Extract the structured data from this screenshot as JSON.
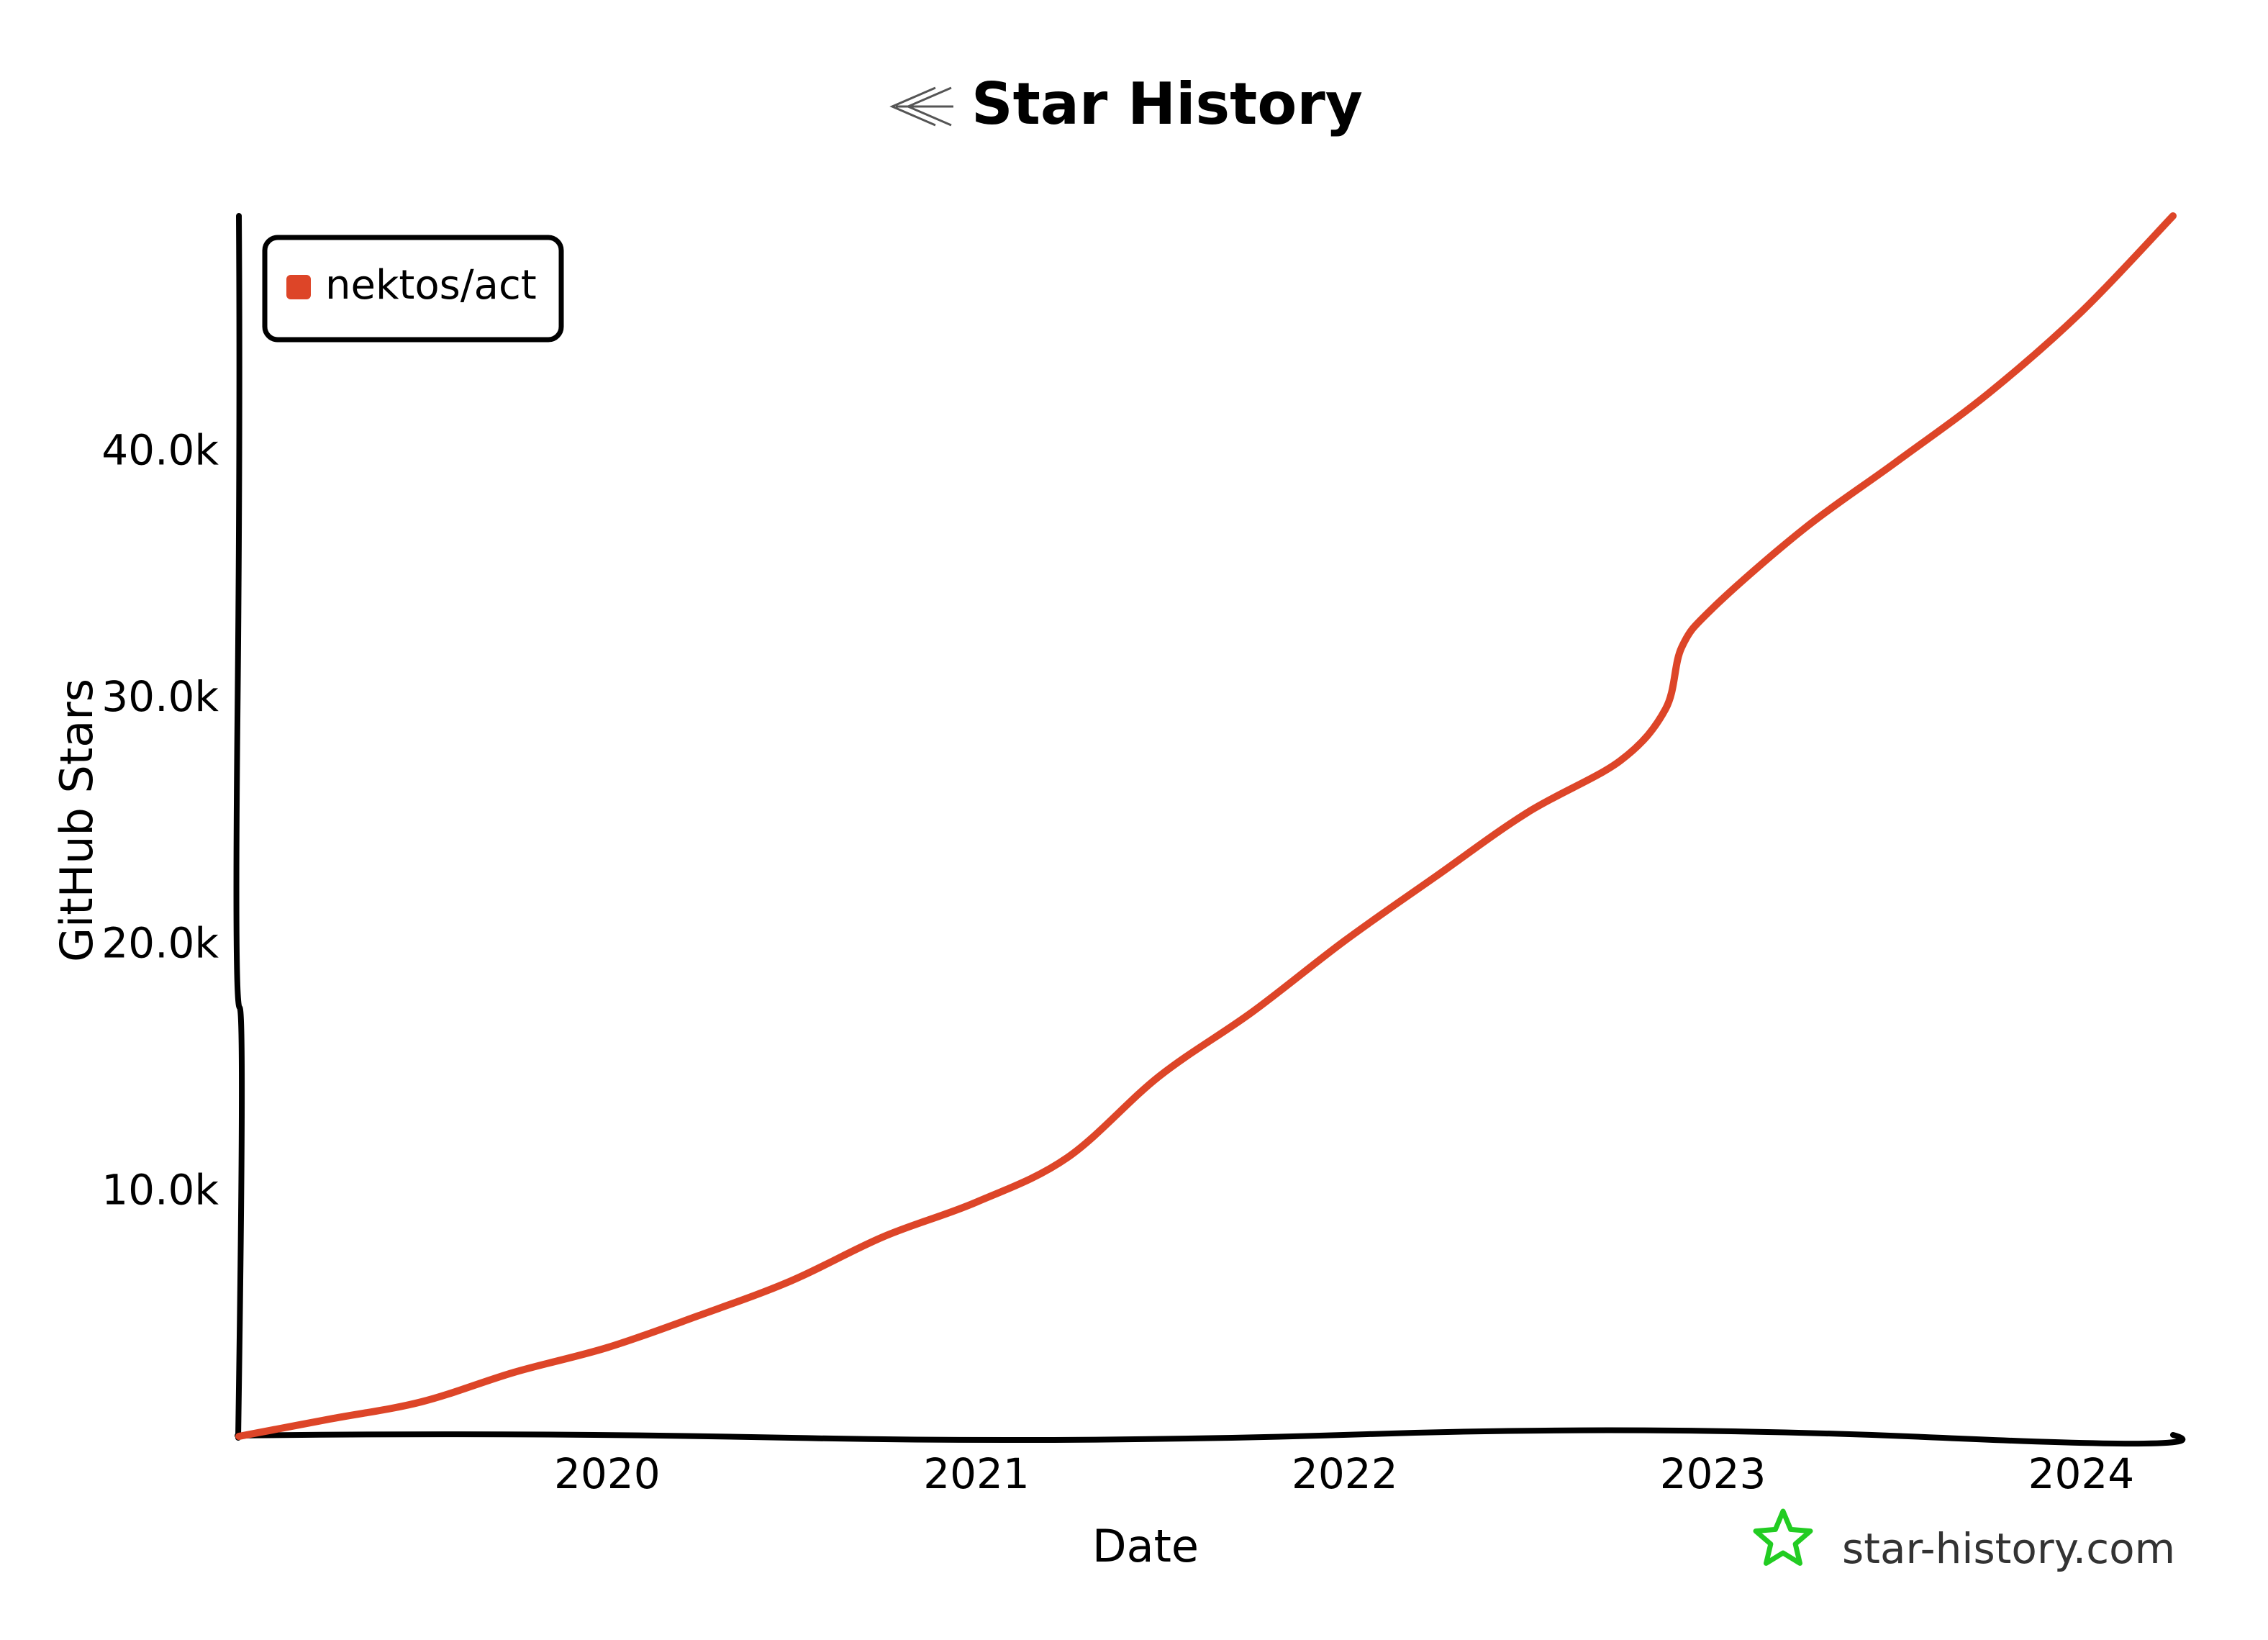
{
  "chart_data": {
    "type": "line",
    "title": "Star History",
    "xlabel": "Date",
    "ylabel": "GitHub Stars",
    "x_ticks": [
      "2020",
      "2021",
      "2022",
      "2023",
      "2024"
    ],
    "y_ticks": [
      "10.0k",
      "20.0k",
      "30.0k",
      "40.0k"
    ],
    "y_tick_values": [
      10000,
      20000,
      30000,
      40000
    ],
    "xlim": [
      "2019-01-01",
      "2024-04-01"
    ],
    "ylim": [
      0,
      49500
    ],
    "grid": false,
    "legend_position": "top-left",
    "series": [
      {
        "name": "nektos/act",
        "color": "#dd4528",
        "x": [
          "2019-01-01",
          "2019-04-01",
          "2019-07-01",
          "2019-10-01",
          "2020-01-01",
          "2020-04-01",
          "2020-07-01",
          "2020-10-01",
          "2021-01-01",
          "2021-04-01",
          "2021-07-01",
          "2021-10-01",
          "2022-01-01",
          "2022-04-01",
          "2022-07-01",
          "2022-10-01",
          "2022-11-15",
          "2022-12-01",
          "2023-01-01",
          "2023-04-01",
          "2023-07-01",
          "2023-10-01",
          "2024-01-01",
          "2024-04-01"
        ],
        "y": [
          0,
          700,
          1400,
          2600,
          3600,
          4900,
          6300,
          8100,
          9500,
          11300,
          14600,
          17200,
          20100,
          22700,
          25300,
          27400,
          29500,
          32000,
          33600,
          36800,
          39500,
          42300,
          45600,
          49500
        ]
      }
    ]
  },
  "footer": {
    "brand": "star-history.com",
    "brand_icon": "star-icon",
    "brand_color": "#22cc22"
  },
  "title_icon": "star-history-logo-icon"
}
